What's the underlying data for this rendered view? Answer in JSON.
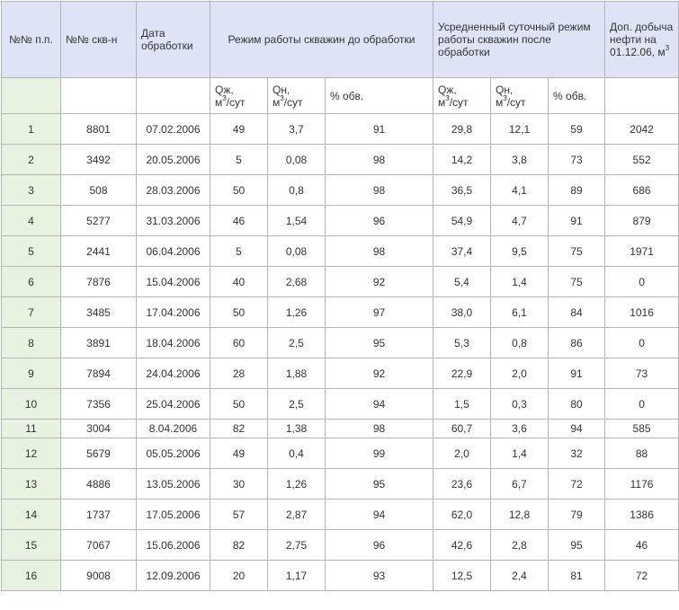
{
  "header": {
    "num": "№№ п.п.",
    "well": "№№ скв-н",
    "date": "Дата обработки",
    "before": "Режим работы скважин до обработки",
    "after": "Усредненный суточный режим работы скважин после обработки",
    "extra_line1": "Доп. добыча нефти на 01.12.06, м",
    "extra_sup": "3"
  },
  "subheader": {
    "qzh_before_a": "Qж,",
    "qzh_before_b": "м",
    "qzh_before_sup": "3",
    "qzh_before_c": "/сут",
    "qn_before_a": "Qн,",
    "qn_before_b": "м",
    "qn_before_sup": "3",
    "qn_before_c": "/сут",
    "water_before": "% обв.",
    "qzh_after_a": "Qж,",
    "qzh_after_b": "м",
    "qzh_after_sup": "3",
    "qzh_after_c": "/сут",
    "qn_after_a": "Qн,",
    "qn_after_b": "м",
    "qn_after_sup": "3",
    "qn_after_c": "/сут",
    "water_after": "% обв."
  },
  "rows": [
    {
      "n": "1",
      "well": "8801",
      "date": "07.02.2006",
      "qzh_b": "49",
      "qn_b": "3,7",
      "w_b": "91",
      "qzh_a": "29,8",
      "qn_a": "12,1",
      "w_a": "59",
      "extra": "2042"
    },
    {
      "n": "2",
      "well": "3492",
      "date": "20.05.2006",
      "qzh_b": "5",
      "qn_b": "0,08",
      "w_b": "98",
      "qzh_a": "14,2",
      "qn_a": "3,8",
      "w_a": "73",
      "extra": "552"
    },
    {
      "n": "3",
      "well": "508",
      "date": "28.03.2006",
      "qzh_b": "50",
      "qn_b": "0,8",
      "w_b": "98",
      "qzh_a": "36,5",
      "qn_a": "4,1",
      "w_a": "89",
      "extra": "686"
    },
    {
      "n": "4",
      "well": "5277",
      "date": "31.03.2006",
      "qzh_b": "46",
      "qn_b": "1,54",
      "w_b": "96",
      "qzh_a": "54,9",
      "qn_a": "4,7",
      "w_a": "91",
      "extra": "879"
    },
    {
      "n": "5",
      "well": "2441",
      "date": "06.04.2006",
      "qzh_b": "5",
      "qn_b": "0,08",
      "w_b": "98",
      "qzh_a": "37,4",
      "qn_a": "9,5",
      "w_a": "75",
      "extra": "1971"
    },
    {
      "n": "6",
      "well": "7876",
      "date": "15.04.2006",
      "qzh_b": "40",
      "qn_b": "2,68",
      "w_b": "92",
      "qzh_a": "5,4",
      "qn_a": "1,4",
      "w_a": "75",
      "extra": "0"
    },
    {
      "n": "7",
      "well": "3485",
      "date": "17.04.2006",
      "qzh_b": "50",
      "qn_b": "1,26",
      "w_b": "97",
      "qzh_a": "38,0",
      "qn_a": "6,1",
      "w_a": "84",
      "extra": "1016"
    },
    {
      "n": "8",
      "well": "3891",
      "date": "18.04.2006",
      "qzh_b": "60",
      "qn_b": "2,5",
      "w_b": "95",
      "qzh_a": "5,3",
      "qn_a": "0,8",
      "w_a": "86",
      "extra": "0"
    },
    {
      "n": "9",
      "well": "7894",
      "date": "24.04.2006",
      "qzh_b": "28",
      "qn_b": "1,88",
      "w_b": "92",
      "qzh_a": "22,9",
      "qn_a": "2,0",
      "w_a": "91",
      "extra": "73"
    },
    {
      "n": "10",
      "well": "7356",
      "date": "25.04.2006",
      "qzh_b": "50",
      "qn_b": "2,5",
      "w_b": "94",
      "qzh_a": "1,5",
      "qn_a": "0,3",
      "w_a": "80",
      "extra": "0"
    },
    {
      "n": "11",
      "well": "3004",
      "date": "8.04.2006",
      "qzh_b": "82",
      "qn_b": "1,38",
      "w_b": "98",
      "qzh_a": "60,7",
      "qn_a": "3,6",
      "w_a": "94",
      "extra": "585"
    },
    {
      "n": "12",
      "well": "5679",
      "date": "05.05.2006",
      "qzh_b": "49",
      "qn_b": "0,4",
      "w_b": "99",
      "qzh_a": "2,0",
      "qn_a": "1,4",
      "w_a": "32",
      "extra": "88"
    },
    {
      "n": "13",
      "well": "4886",
      "date": "13.05.2006",
      "qzh_b": "30",
      "qn_b": "1,26",
      "w_b": "95",
      "qzh_a": "23,6",
      "qn_a": "6,7",
      "w_a": "72",
      "extra": "1176"
    },
    {
      "n": "14",
      "well": "1737",
      "date": "17.05.2006",
      "qzh_b": "57",
      "qn_b": "2,87",
      "w_b": "94",
      "qzh_a": "62,0",
      "qn_a": "12,8",
      "w_a": "79",
      "extra": "1386"
    },
    {
      "n": "15",
      "well": "7067",
      "date": "15.06.2006",
      "qzh_b": "82",
      "qn_b": "2,75",
      "w_b": "96",
      "qzh_a": "42,6",
      "qn_a": "2,8",
      "w_a": "95",
      "extra": "46"
    },
    {
      "n": "16",
      "well": "9008",
      "date": "12.09.2006",
      "qzh_b": "20",
      "qn_b": "1,17",
      "w_b": "93",
      "qzh_a": "12,5",
      "qn_a": "2,4",
      "w_a": "81",
      "extra": "72"
    }
  ]
}
